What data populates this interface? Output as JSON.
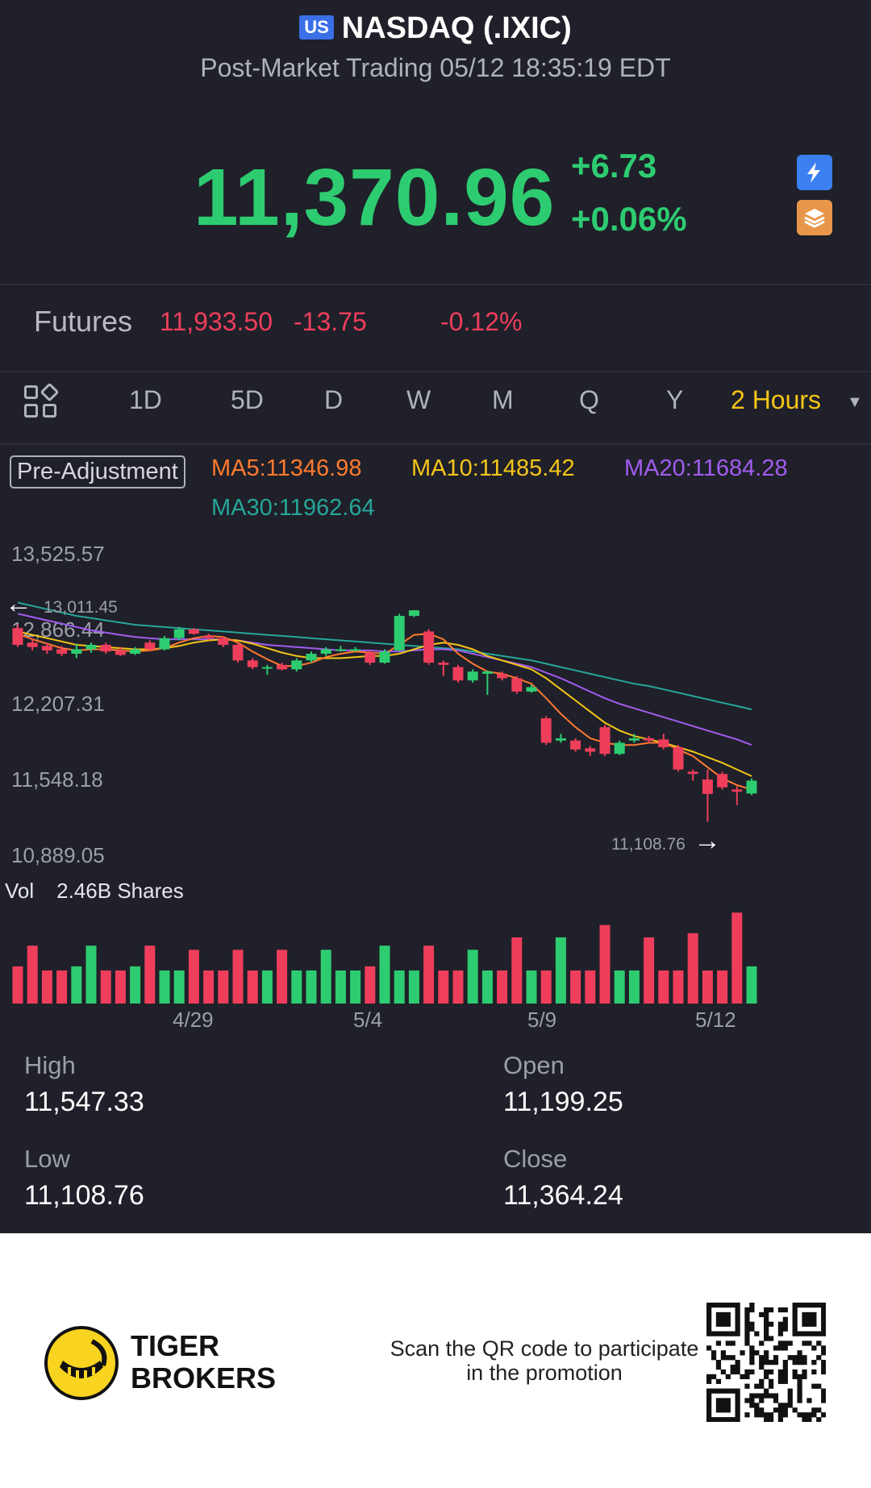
{
  "header": {
    "market_badge": "US",
    "title": "NASDAQ (.IXIC)",
    "session": "Post-Market Trading 05/12 18:35:19 EDT"
  },
  "quote": {
    "price": "11,370.96",
    "change": "+6.73",
    "change_pct": "+0.06%"
  },
  "icons": {
    "flash": "flash-icon",
    "layers": "layers-icon"
  },
  "futures": {
    "label": "Futures",
    "price": "11,933.50",
    "change": "-13.75",
    "change_pct": "-0.12%"
  },
  "tabs": {
    "items": [
      "1D",
      "5D",
      "D",
      "W",
      "M",
      "Q",
      "Y"
    ],
    "active": "2 Hours"
  },
  "chart": {
    "adjustment": "Pre-Adjustment",
    "ma5": "MA5:11346.98",
    "ma10": "MA10:11485.42",
    "ma20": "MA20:11684.28",
    "ma30": "MA30:11962.64",
    "y_labels": [
      "13,525.57",
      "12,866.44",
      "12,207.31",
      "11,548.18",
      "10,889.05"
    ],
    "high_marker": "13,011.45",
    "low_marker": "11,108.76",
    "vol_label": "Vol",
    "vol_value": "2.46B Shares",
    "dates": [
      "4/29",
      "5/4",
      "5/9",
      "5/12"
    ],
    "colors": {
      "up": "#2ecc71",
      "down": "#ef3e5b",
      "ma5": "#ff7a2f",
      "ma10": "#f5c518",
      "ma20": "#a25cf0",
      "ma30": "#26a69a"
    }
  },
  "chart_data": {
    "type": "candlestick",
    "ylim": [
      10889.05,
      13525.57
    ],
    "candles": [
      {
        "o": 12850,
        "c": 12700,
        "h": 12880,
        "l": 12680
      },
      {
        "o": 12720,
        "c": 12680,
        "h": 12760,
        "l": 12650
      },
      {
        "o": 12690,
        "c": 12650,
        "h": 12720,
        "l": 12620
      },
      {
        "o": 12660,
        "c": 12620,
        "h": 12690,
        "l": 12600
      },
      {
        "o": 12620,
        "c": 12660,
        "h": 12710,
        "l": 12580
      },
      {
        "o": 12660,
        "c": 12700,
        "h": 12720,
        "l": 12630
      },
      {
        "o": 12700,
        "c": 12640,
        "h": 12720,
        "l": 12620
      },
      {
        "o": 12650,
        "c": 12610,
        "h": 12680,
        "l": 12600
      },
      {
        "o": 12620,
        "c": 12660,
        "h": 12680,
        "l": 12610
      },
      {
        "o": 12720,
        "c": 12660,
        "h": 12740,
        "l": 12640
      },
      {
        "o": 12660,
        "c": 12760,
        "h": 12780,
        "l": 12650
      },
      {
        "o": 12760,
        "c": 12840,
        "h": 12860,
        "l": 12740
      },
      {
        "o": 12840,
        "c": 12800,
        "h": 12850,
        "l": 12790
      },
      {
        "o": 12780,
        "c": 12760,
        "h": 12800,
        "l": 12740
      },
      {
        "o": 12760,
        "c": 12700,
        "h": 12780,
        "l": 12680
      },
      {
        "o": 12700,
        "c": 12560,
        "h": 12720,
        "l": 12540
      },
      {
        "o": 12560,
        "c": 12500,
        "h": 12580,
        "l": 12480
      },
      {
        "o": 12500,
        "c": 12500,
        "h": 12520,
        "l": 12430
      },
      {
        "o": 12520,
        "c": 12480,
        "h": 12540,
        "l": 12470
      },
      {
        "o": 12480,
        "c": 12560,
        "h": 12580,
        "l": 12460
      },
      {
        "o": 12560,
        "c": 12620,
        "h": 12640,
        "l": 12540
      },
      {
        "o": 12620,
        "c": 12660,
        "h": 12680,
        "l": 12600
      },
      {
        "o": 12650,
        "c": 12660,
        "h": 12690,
        "l": 12640
      },
      {
        "o": 12660,
        "c": 12660,
        "h": 12680,
        "l": 12640
      },
      {
        "o": 12630,
        "c": 12540,
        "h": 12650,
        "l": 12520
      },
      {
        "o": 12540,
        "c": 12640,
        "h": 12660,
        "l": 12530
      },
      {
        "o": 12650,
        "c": 12960,
        "h": 12980,
        "l": 12640
      },
      {
        "o": 12960,
        "c": 13010,
        "h": 13011,
        "l": 12950
      },
      {
        "o": 12820,
        "c": 12540,
        "h": 12840,
        "l": 12520
      },
      {
        "o": 12540,
        "c": 12520,
        "h": 12560,
        "l": 12420
      },
      {
        "o": 12500,
        "c": 12380,
        "h": 12520,
        "l": 12360
      },
      {
        "o": 12380,
        "c": 12460,
        "h": 12480,
        "l": 12360
      },
      {
        "o": 12440,
        "c": 12460,
        "h": 12470,
        "l": 12250
      },
      {
        "o": 12440,
        "c": 12400,
        "h": 12460,
        "l": 12380
      },
      {
        "o": 12400,
        "c": 12280,
        "h": 12420,
        "l": 12260
      },
      {
        "o": 12280,
        "c": 12320,
        "h": 12340,
        "l": 12270
      },
      {
        "o": 12040,
        "c": 11820,
        "h": 12060,
        "l": 11800
      },
      {
        "o": 11840,
        "c": 11860,
        "h": 11900,
        "l": 11820
      },
      {
        "o": 11840,
        "c": 11760,
        "h": 11860,
        "l": 11740
      },
      {
        "o": 11770,
        "c": 11740,
        "h": 11790,
        "l": 11700
      },
      {
        "o": 11960,
        "c": 11720,
        "h": 11980,
        "l": 11700
      },
      {
        "o": 11720,
        "c": 11820,
        "h": 11840,
        "l": 11710
      },
      {
        "o": 11840,
        "c": 11860,
        "h": 11900,
        "l": 11820
      },
      {
        "o": 11860,
        "c": 11840,
        "h": 11880,
        "l": 11820
      },
      {
        "o": 11850,
        "c": 11780,
        "h": 11900,
        "l": 11760
      },
      {
        "o": 11780,
        "c": 11580,
        "h": 11800,
        "l": 11560
      },
      {
        "o": 11560,
        "c": 11540,
        "h": 11580,
        "l": 11480
      },
      {
        "o": 11490,
        "c": 11360,
        "h": 11580,
        "l": 11110
      },
      {
        "o": 11540,
        "c": 11420,
        "h": 11560,
        "l": 11400
      },
      {
        "o": 11400,
        "c": 11380,
        "h": 11430,
        "l": 11260
      },
      {
        "o": 11364,
        "c": 11480,
        "h": 11500,
        "l": 11350
      }
    ],
    "ma5": [
      12800,
      12750,
      12710,
      12670,
      12650,
      12660,
      12660,
      12650,
      12640,
      12650,
      12670,
      12720,
      12760,
      12780,
      12770,
      12720,
      12640,
      12570,
      12510,
      12510,
      12540,
      12590,
      12620,
      12640,
      12630,
      12620,
      12700,
      12790,
      12800,
      12750,
      12620,
      12530,
      12460,
      12440,
      12400,
      12350,
      12220,
      12080,
      11960,
      11860,
      11820,
      11800,
      11800,
      11820,
      11820,
      11760,
      11700,
      11600,
      11500,
      11440,
      11400
    ],
    "ma10": [
      12820,
      12790,
      12760,
      12730,
      12700,
      12690,
      12680,
      12670,
      12660,
      12660,
      12670,
      12690,
      12720,
      12740,
      12750,
      12740,
      12710,
      12670,
      12630,
      12600,
      12580,
      12580,
      12580,
      12590,
      12600,
      12600,
      12620,
      12660,
      12700,
      12720,
      12700,
      12660,
      12600,
      12560,
      12520,
      12480,
      12400,
      12300,
      12200,
      12100,
      12000,
      11930,
      11880,
      11850,
      11820,
      11780,
      11740,
      11690,
      11640,
      11580,
      11520
    ],
    "ma20": [
      12980,
      12950,
      12920,
      12890,
      12860,
      12830,
      12810,
      12790,
      12770,
      12760,
      12750,
      12750,
      12750,
      12750,
      12750,
      12740,
      12720,
      12700,
      12690,
      12680,
      12670,
      12660,
      12650,
      12650,
      12650,
      12640,
      12640,
      12650,
      12660,
      12660,
      12650,
      12620,
      12590,
      12560,
      12530,
      12500,
      12450,
      12400,
      12340,
      12280,
      12220,
      12170,
      12130,
      12090,
      12050,
      12010,
      11970,
      11930,
      11890,
      11850,
      11800
    ],
    "ma30": [
      13080,
      13050,
      13020,
      12990,
      12960,
      12940,
      12920,
      12900,
      12880,
      12870,
      12860,
      12850,
      12840,
      12830,
      12820,
      12810,
      12800,
      12790,
      12780,
      12770,
      12760,
      12750,
      12740,
      12730,
      12720,
      12710,
      12700,
      12690,
      12680,
      12670,
      12660,
      12640,
      12620,
      12600,
      12580,
      12560,
      12530,
      12500,
      12470,
      12440,
      12410,
      12380,
      12350,
      12330,
      12300,
      12270,
      12240,
      12210,
      12180,
      12150,
      12120
    ],
    "volumes": [
      0.9,
      1.4,
      0.8,
      0.8,
      0.9,
      1.4,
      0.8,
      0.8,
      0.9,
      1.4,
      0.8,
      0.8,
      1.3,
      0.8,
      0.8,
      1.3,
      0.8,
      0.8,
      1.3,
      0.8,
      0.8,
      1.3,
      0.8,
      0.8,
      0.9,
      1.4,
      0.8,
      0.8,
      1.4,
      0.8,
      0.8,
      1.3,
      0.8,
      0.8,
      1.6,
      0.8,
      0.8,
      1.6,
      0.8,
      0.8,
      1.9,
      0.8,
      0.8,
      1.6,
      0.8,
      0.8,
      1.7,
      0.8,
      0.8,
      2.2,
      0.9
    ]
  },
  "stats": {
    "high_label": "High",
    "high": "11,547.33",
    "open_label": "Open",
    "open": "11,199.25",
    "low_label": "Low",
    "low": "11,108.76",
    "close_label": "Close",
    "close": "11,364.24"
  },
  "footer": {
    "brand_line1": "TIGER",
    "brand_line2": "BROKERS",
    "promo": "Scan the QR code to participate in the promotion"
  }
}
